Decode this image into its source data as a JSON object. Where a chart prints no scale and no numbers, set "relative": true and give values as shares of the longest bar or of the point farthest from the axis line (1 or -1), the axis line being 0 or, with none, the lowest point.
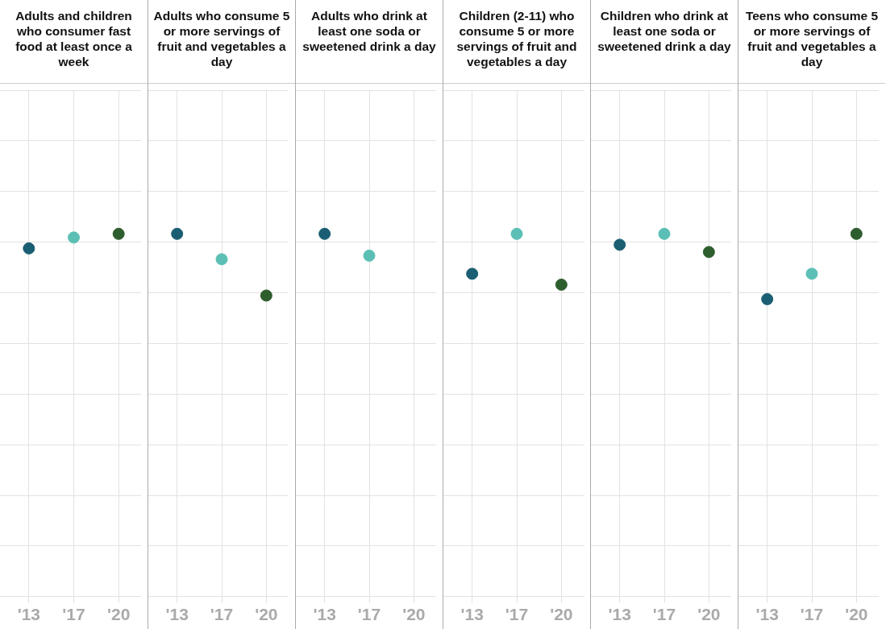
{
  "chart_data": [
    {
      "type": "scatter",
      "title": "Adults and children who consumer fast food at least once a week",
      "categories": [
        "'13",
        "'17",
        "'20"
      ],
      "values": [
        0.96,
        0.99,
        1
      ],
      "colors": [
        "#1a5e73",
        "#5bbfb5",
        "#2f5e2e"
      ],
      "relative": true,
      "grid": true,
      "tick_labels": "x",
      "marker": "circle"
    },
    {
      "type": "scatter",
      "title": "Adults who consume 5 or more servings of fruit and vegetables a day",
      "categories": [
        "'13",
        "'17",
        "'20"
      ],
      "values": [
        1,
        0.93,
        0.83
      ],
      "colors": [
        "#1a5e73",
        "#5bbfb5",
        "#2f5e2e"
      ],
      "relative": true,
      "grid": true,
      "tick_labels": "x",
      "marker": "circle"
    },
    {
      "type": "scatter",
      "title": "Adults who drink at least one soda or sweetened drink a day",
      "categories": [
        "'13",
        "'17",
        "'20"
      ],
      "values": [
        1,
        0.94,
        null
      ],
      "colors": [
        "#1a5e73",
        "#5bbfb5",
        "#2f5e2e"
      ],
      "relative": true,
      "grid": true,
      "tick_labels": "x",
      "marker": "circle"
    },
    {
      "type": "scatter",
      "title": "Children (2-11) who consume 5 or more servings of fruit and vegetables a day",
      "categories": [
        "'13",
        "'17",
        "'20"
      ],
      "values": [
        0.89,
        1,
        0.86
      ],
      "colors": [
        "#1a5e73",
        "#5bbfb5",
        "#2f5e2e"
      ],
      "relative": true,
      "grid": true,
      "tick_labels": "x",
      "marker": "circle"
    },
    {
      "type": "scatter",
      "title": "Children who drink at least one soda or sweetened drink a day",
      "categories": [
        "'13",
        "'17",
        "'20"
      ],
      "values": [
        0.97,
        1,
        0.95
      ],
      "colors": [
        "#1a5e73",
        "#5bbfb5",
        "#2f5e2e"
      ],
      "relative": true,
      "grid": true,
      "tick_labels": "x",
      "marker": "circle"
    },
    {
      "type": "scatter",
      "title": "Teens who consume 5 or more servings of fruit and vegetables a day",
      "categories": [
        "'13",
        "'17",
        "'20"
      ],
      "values": [
        0.82,
        0.89,
        1
      ],
      "colors": [
        "#1a5e73",
        "#5bbfb5",
        "#2f5e2e"
      ],
      "relative": true,
      "grid": true,
      "tick_labels": "x",
      "marker": "circle"
    }
  ]
}
